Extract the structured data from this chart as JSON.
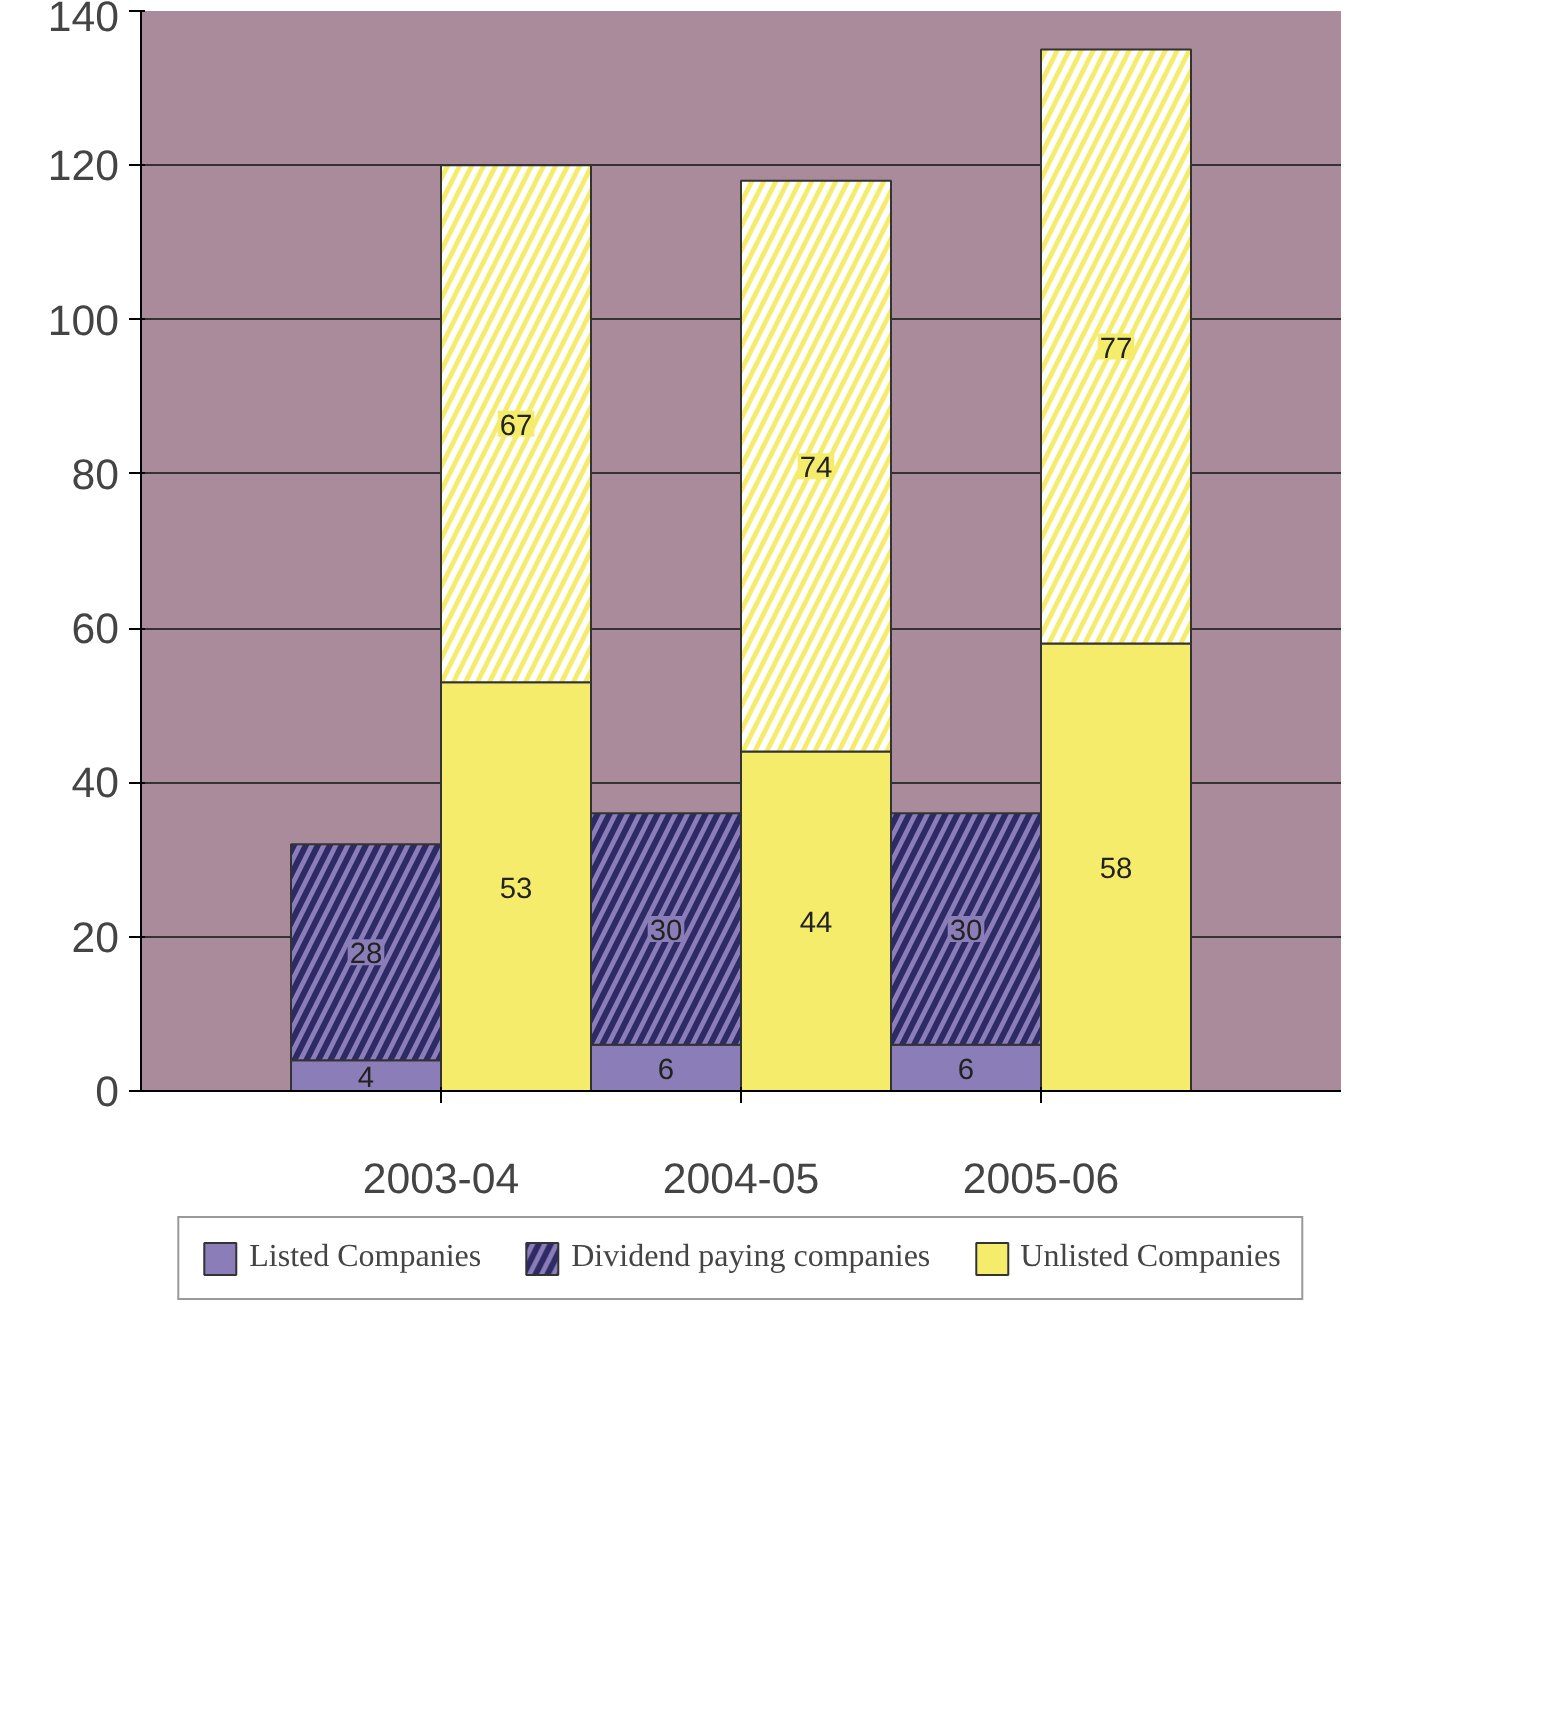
{
  "chart_data": {
    "type": "bar",
    "stacked": true,
    "categories": [
      "2003-04",
      null,
      "2004-05",
      null,
      "2005-06",
      null
    ],
    "series": [
      {
        "name": "Listed Companies",
        "color": "#8a7db8",
        "values": [
          4,
          null,
          6,
          null,
          6,
          null
        ]
      },
      {
        "name": "Dividend paying companies",
        "color": "#8a7db8",
        "values": [
          28,
          null,
          30,
          null,
          30,
          null
        ]
      },
      {
        "name": "Unlisted Companies",
        "color": "#f4ec6a",
        "values": [
          null,
          53,
          null,
          44,
          null,
          58
        ]
      },
      {
        "color": "#f4ec6a",
        "values": [
          null,
          67,
          null,
          74,
          null,
          77
        ]
      }
    ],
    "ylim": [
      0,
      140
    ],
    "yticks": [
      0,
      20,
      40,
      60,
      80,
      100,
      120,
      140
    ],
    "grid": "y",
    "legend": "bottom",
    "data_labels": true
  }
}
